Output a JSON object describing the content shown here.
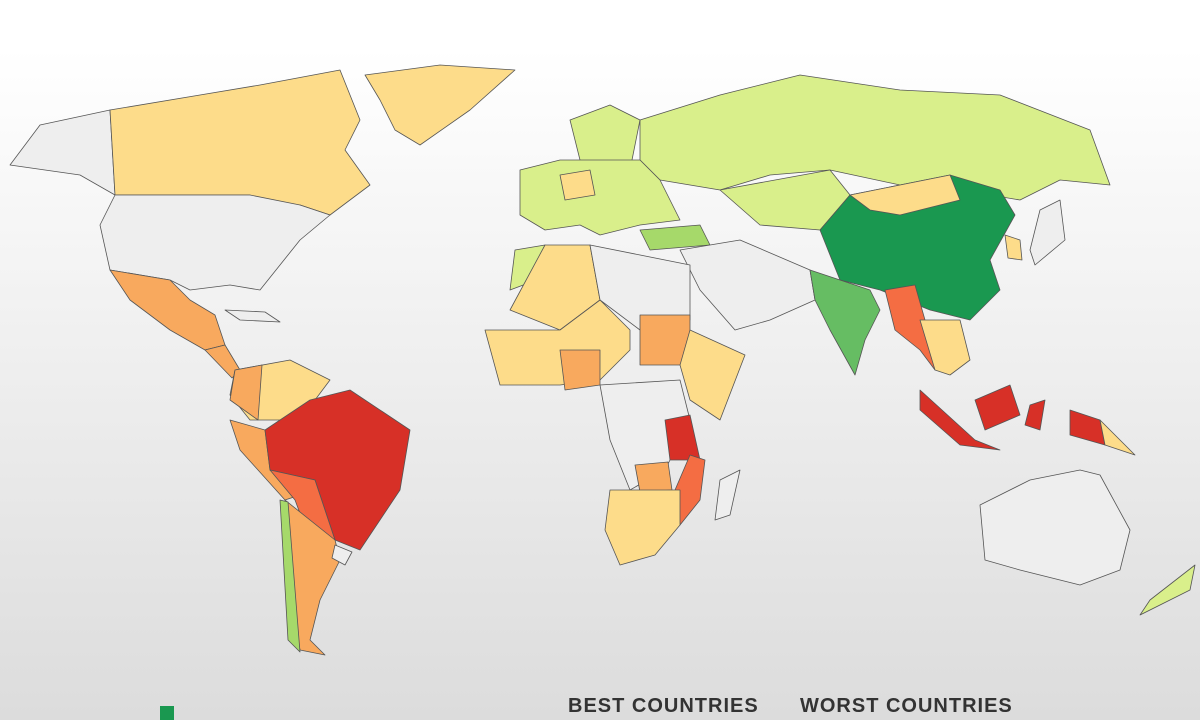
{
  "legend": {
    "best": "BEST COUNTRIES",
    "worst": "WORST COUNTRIES"
  }
}
